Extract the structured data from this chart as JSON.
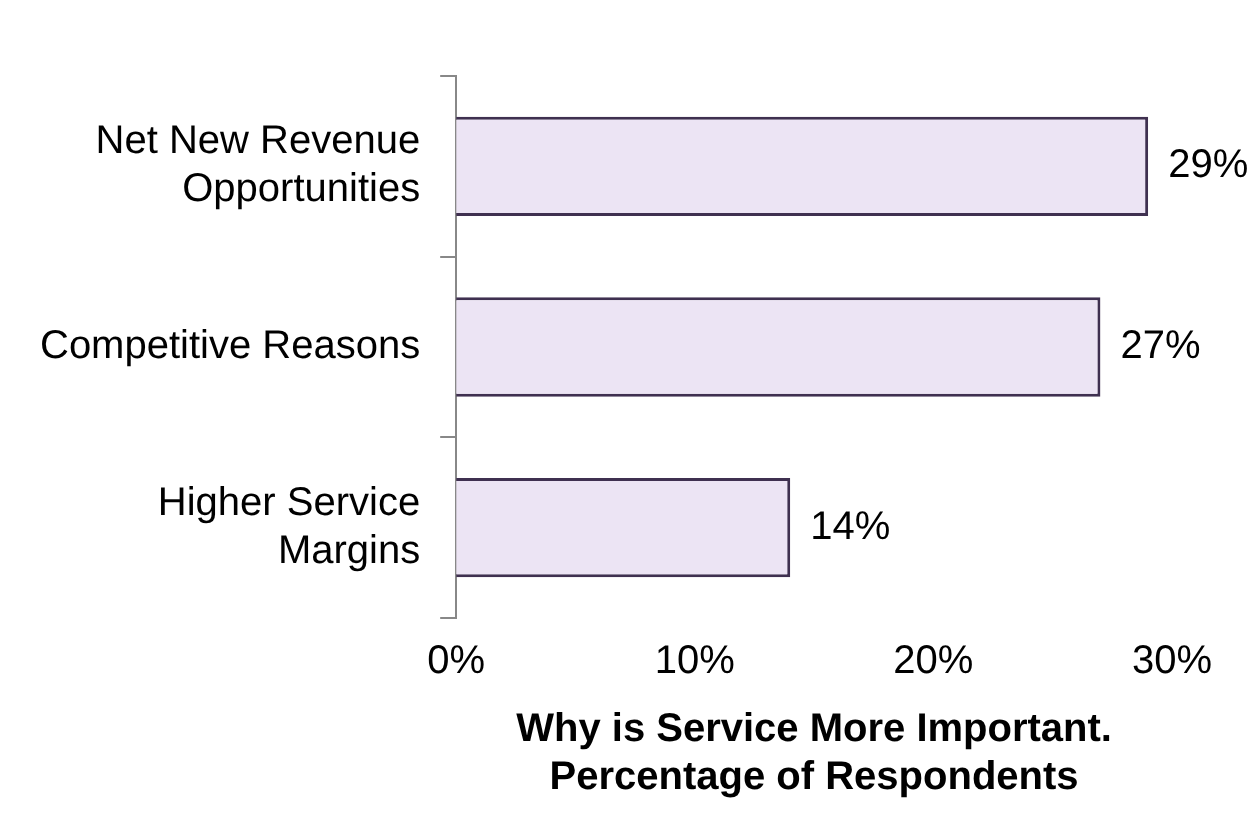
{
  "chart_data": {
    "type": "bar",
    "orientation": "horizontal",
    "xlabel": "Why is Service More Important.\nPercentage of Respondents",
    "categories": [
      "Net New Revenue Opportunities",
      "Competitive Reasons",
      "Higher Service Margins"
    ],
    "values": [
      29,
      27,
      14
    ],
    "value_labels": [
      "29%",
      "27%",
      "14%"
    ],
    "color": "#ece4f4",
    "xlim": [
      0,
      30
    ],
    "xticks": [
      {
        "value": 0,
        "label": "0%"
      },
      {
        "value": 10,
        "label": "10%"
      },
      {
        "value": 20,
        "label": "20%"
      },
      {
        "value": 30,
        "label": "30%"
      }
    ],
    "grid": false,
    "legend": false
  }
}
